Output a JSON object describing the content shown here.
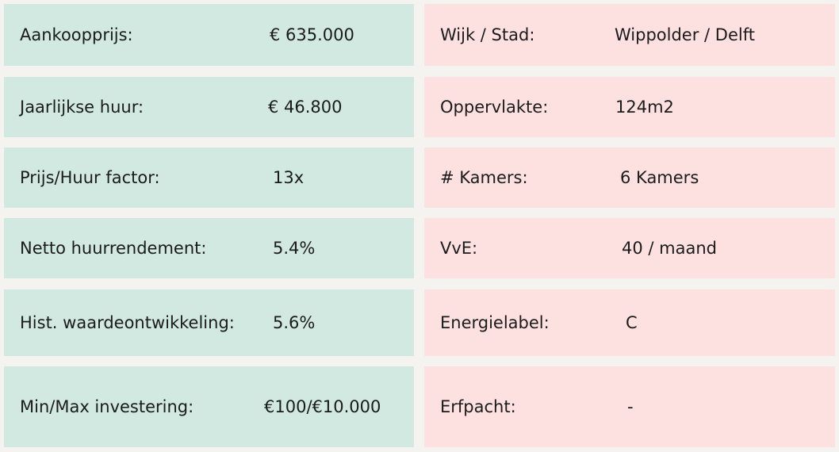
{
  "left": [
    {
      "label": "Aankoopprijs:",
      "value": "€ 635.000"
    },
    {
      "label": "Jaarlijkse huur:",
      "value": "€ 46.800"
    },
    {
      "label": "Prijs/Huur factor:",
      "value": "13x"
    },
    {
      "label": "Netto huurrendement:",
      "value": "5.4%"
    },
    {
      "label": "Hist. waardeontwikkeling:",
      "value": "5.6%"
    },
    {
      "label": "Min/Max investering:",
      "value": "€100/€10.000"
    }
  ],
  "right": [
    {
      "label": "Wijk / Stad:",
      "value": "Wippolder / Delft"
    },
    {
      "label": "Oppervlakte:",
      "value": "124m2"
    },
    {
      "label": "# Kamers:",
      "value": "6 Kamers"
    },
    {
      "label": "VvE:",
      "value": "40 / maand"
    },
    {
      "label": "Energielabel:",
      "value": "C"
    },
    {
      "label": "Erfpacht:",
      "value": "-"
    }
  ],
  "colors": {
    "left_card": "#d1e9e1",
    "right_card": "#fde1e1",
    "background": "#f4f3f0"
  }
}
